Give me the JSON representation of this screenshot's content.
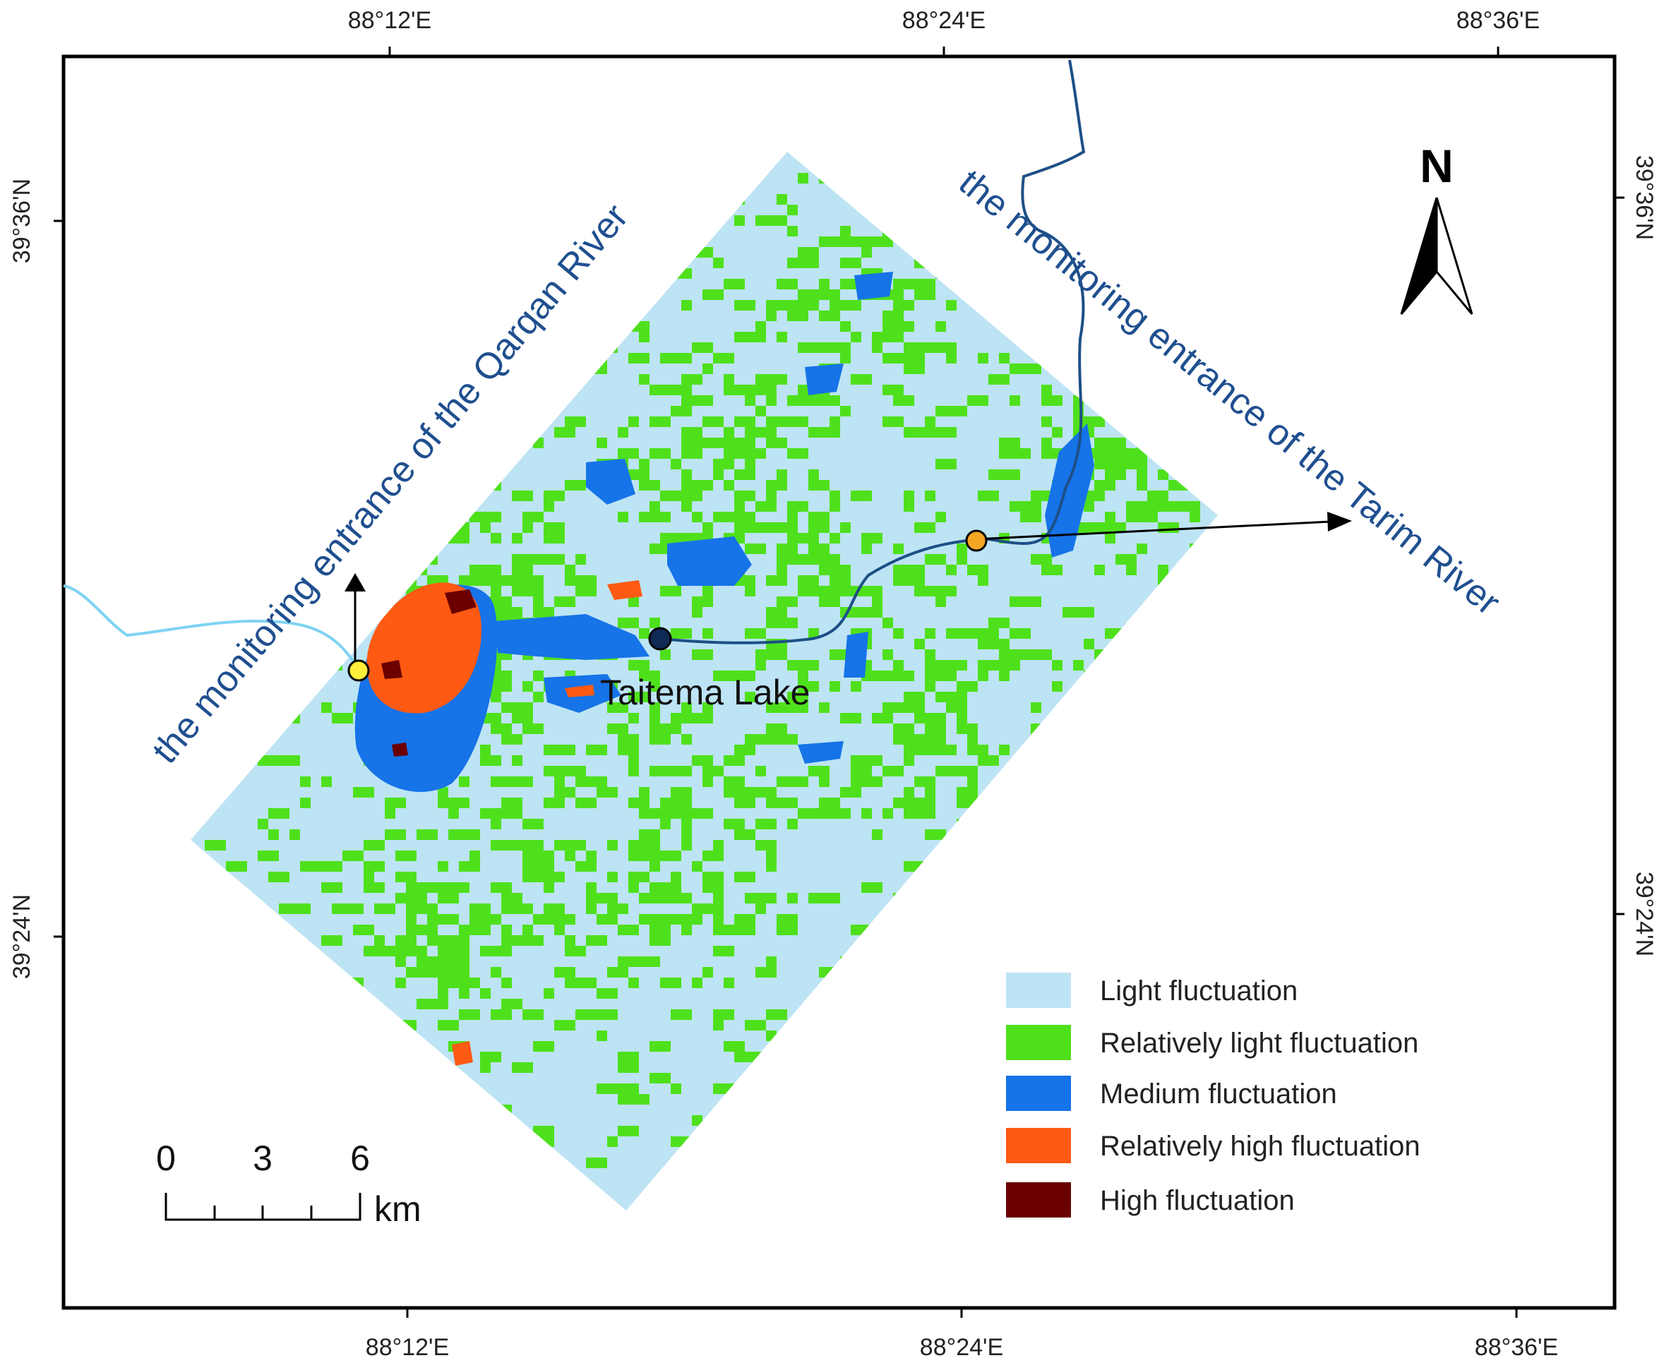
{
  "map": {
    "axes": {
      "top_ticks": [
        "88°12'E",
        "88°24'E",
        "88°36'E"
      ],
      "bottom_ticks": [
        "88°12'E",
        "88°24'E",
        "88°36'E"
      ],
      "left_ticks": [
        "39°36'N",
        "39°24'N"
      ],
      "right_ticks": [
        "39°36'N",
        "39°24'N"
      ]
    },
    "labels": {
      "qarqan": "the monitoring entrance of the Qarqan River",
      "tarim": "the monitoring entrance of the Tarim River",
      "lake": "Taitema Lake"
    },
    "north_arrow": {
      "label": "N",
      "icon": "north-arrow-icon"
    },
    "scale_bar": {
      "ticks": [
        "0",
        "3",
        "6"
      ],
      "unit": "km"
    },
    "legend": [
      {
        "label": "Light fluctuation",
        "color": "#bde4f4"
      },
      {
        "label": "Relatively light fluctuation",
        "color": "#4fe01c"
      },
      {
        "label": "Medium fluctuation",
        "color": "#1673e8"
      },
      {
        "label": "Relatively high fluctuation",
        "color": "#ff5a14"
      },
      {
        "label": "High fluctuation",
        "color": "#6b0000"
      }
    ],
    "points": [
      {
        "name": "qarqan-entrance-point",
        "color": "#ffef3a"
      },
      {
        "name": "taitema-lake-point",
        "color": "#0f2a55"
      },
      {
        "name": "tarim-entrance-point",
        "color": "#f5a623"
      }
    ],
    "colors": {
      "river_dark": "#1d4f86",
      "river_light": "#7ed3f2"
    }
  }
}
